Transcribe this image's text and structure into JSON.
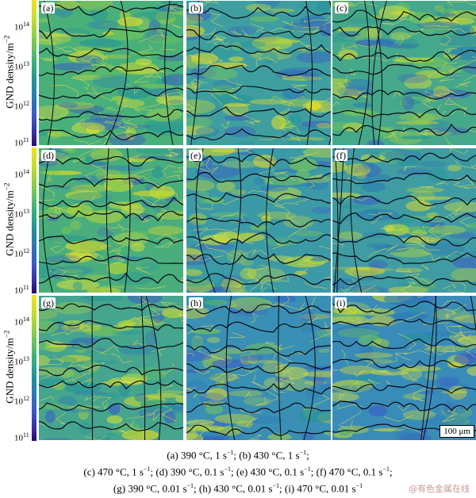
{
  "figure": {
    "y_axis_label": "GND density/m",
    "y_axis_label_exp": "−2",
    "ticks": [
      {
        "base": "10",
        "exp": "14"
      },
      {
        "base": "10",
        "exp": "13"
      },
      {
        "base": "10",
        "exp": "12"
      },
      {
        "base": "10",
        "exp": "11"
      }
    ],
    "panels": [
      {
        "label": "(a)"
      },
      {
        "label": "(b)"
      },
      {
        "label": "(c)"
      },
      {
        "label": "(d)"
      },
      {
        "label": "(e)"
      },
      {
        "label": "(f)"
      },
      {
        "label": "(g)"
      },
      {
        "label": "(h)"
      },
      {
        "label": "(i)"
      }
    ],
    "scale_bar": "100 μm",
    "colors": {
      "high": "#f2e21c",
      "mid": "#21939a",
      "low": "#2a0a6a",
      "boundary": "#0a0a14"
    }
  },
  "caption": {
    "line1": [
      {
        "text": "(a) 390 °C, 1 s"
      },
      {
        "sup": "−1"
      },
      {
        "text": "; (b) 430 °C, 1 s"
      },
      {
        "sup": "−1"
      },
      {
        "text": ";"
      }
    ],
    "line2": [
      {
        "text": "(c) 470 °C, 1 s"
      },
      {
        "sup": "−1"
      },
      {
        "text": "; (d) 390 °C, 0.1 s"
      },
      {
        "sup": "−1"
      },
      {
        "text": "; (e) 430 °C, 0.1 s"
      },
      {
        "sup": "−1"
      },
      {
        "text": "; (f) 470 °C, 0.1 s"
      },
      {
        "sup": "−1"
      },
      {
        "text": ";"
      }
    ],
    "line3": [
      {
        "text": "(g) 390 °C, 0.01 s"
      },
      {
        "sup": "−1"
      },
      {
        "text": "; (h) 430 °C, 0.01 s"
      },
      {
        "sup": "−1"
      },
      {
        "text": "; (i) 470 °C, 0.01 s"
      },
      {
        "sup": "−1"
      }
    ]
  },
  "watermark": "@有色金属在线"
}
